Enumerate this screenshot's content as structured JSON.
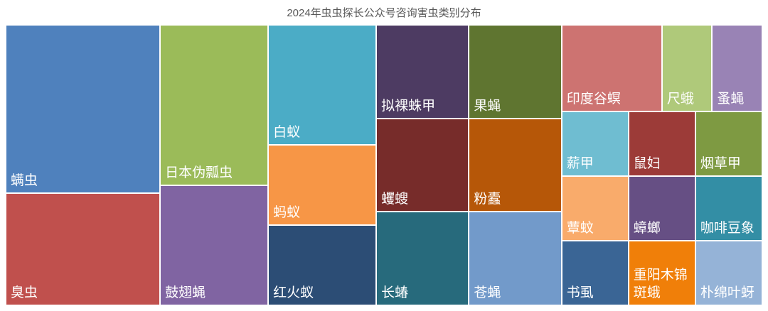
{
  "chart_data": {
    "type": "treemap",
    "title": "2024年虫虫探长公众号咨询害虫类别分布",
    "categories": [
      "螨虫",
      "臭虫",
      "日本伪瓢虫",
      "鼓翅蝇",
      "白蚁",
      "蚂蚁",
      "红火蚁",
      "拟裸蛛甲",
      "蠼螋",
      "长蝽",
      "果蝇",
      "粉蠹",
      "苍蝇",
      "印度谷螟",
      "尺蛾",
      "蚤蝇",
      "薪甲",
      "蕈蚊",
      "书虱",
      "鼠妇",
      "烟草甲",
      "蟑螂",
      "重阳木锦斑蛾",
      "咖啡豆象",
      "朴绵叶蚜"
    ],
    "values": [
      6,
      4,
      4,
      3,
      3,
      2,
      2,
      2,
      2,
      2,
      2,
      2,
      2,
      2,
      1,
      1,
      1,
      1,
      1,
      1,
      1,
      1,
      1,
      1,
      1
    ],
    "colors": [
      "#4f81bd",
      "#c0504d",
      "#9bbb59",
      "#8064a2",
      "#4bacc6",
      "#f79646",
      "#2c4d75",
      "#4d3b62",
      "#772c2a",
      "#276a7c",
      "#5f7530",
      "#b65708",
      "#729aca",
      "#cd7371",
      "#afc97a",
      "#9983b5",
      "#6fbdd1",
      "#f9ab6b",
      "#3a6595",
      "#9c3b38",
      "#7e9a42",
      "#664f84",
      "#f07f09",
      "#338ea5",
      "#95b3d7"
    ]
  }
}
